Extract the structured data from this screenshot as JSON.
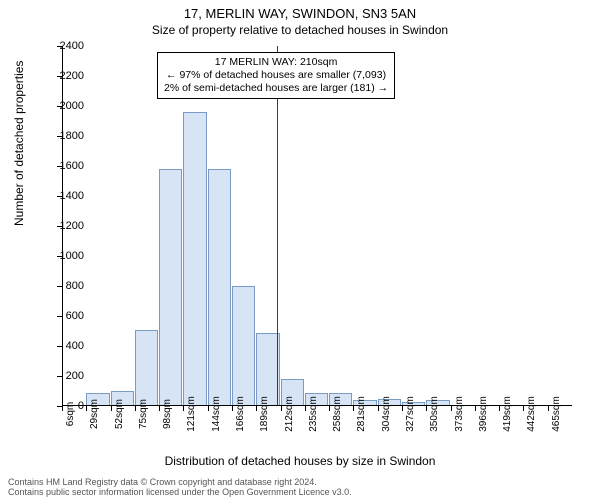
{
  "title": "17, MERLIN WAY, SWINDON, SN3 5AN",
  "subtitle": "Size of property relative to detached houses in Swindon",
  "ylabel": "Number of detached properties",
  "xlabel": "Distribution of detached houses by size in Swindon",
  "footer_line1": "Contains HM Land Registry data © Crown copyright and database right 2024.",
  "footer_line2": "Contains public sector information licensed under the Open Government Licence v3.0.",
  "annotation_l1": "17 MERLIN WAY: 210sqm",
  "annotation_l2": "← 97% of detached houses are smaller (7,093)",
  "annotation_l3": "2% of semi-detached houses are larger (181) →",
  "chart": {
    "type": "histogram",
    "background_color": "#ffffff",
    "bar_fill": "#d6e4f5",
    "bar_stroke": "#7a9bc4",
    "axis_color": "#000000",
    "ref_line_color": "#cc0000",
    "title_fontsize": 13,
    "subtitle_fontsize": 12,
    "label_fontsize": 12,
    "tick_fontsize": 11,
    "xtick_fontsize": 10,
    "ylim": [
      0,
      2400
    ],
    "ytick_step": 200,
    "yticks": [
      0,
      200,
      400,
      600,
      800,
      1000,
      1200,
      1400,
      1600,
      1800,
      2000,
      2200,
      2400
    ],
    "x_bin_start": 6,
    "x_bin_width": 23,
    "x_bins": 21,
    "xticks": [
      "6sqm",
      "29sqm",
      "52sqm",
      "75sqm",
      "98sqm",
      "121sqm",
      "144sqm",
      "167sqm",
      "190sqm",
      "213sqm",
      "236sqm",
      "259sqm",
      "282sqm",
      "305sqm",
      "328sqm",
      "351sqm",
      "374sqm",
      "397sqm",
      "420sqm",
      "443sqm",
      "466sqm"
    ],
    "xticks_display": [
      "6sqm",
      "29sqm",
      "52sqm",
      "75sqm",
      "98sqm",
      "121sqm",
      "144sqm",
      "166sqm",
      "189sqm",
      "212sqm",
      "235sqm",
      "258sqm",
      "281sqm",
      "304sqm",
      "327sqm",
      "350sqm",
      "373sqm",
      "396sqm",
      "419sqm",
      "442sqm",
      "465sqm"
    ],
    "bar_values": [
      0,
      90,
      100,
      510,
      1580,
      1960,
      1580,
      800,
      490,
      180,
      90,
      90,
      40,
      50,
      30,
      40,
      0,
      0,
      0,
      0,
      0
    ],
    "reference_value_sqm": 210
  }
}
